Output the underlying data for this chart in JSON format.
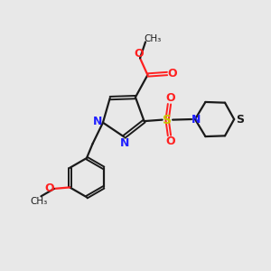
{
  "bg_color": "#e8e8e8",
  "bond_color": "#1a1a1a",
  "nitrogen_color": "#2020ff",
  "oxygen_color": "#ff2020",
  "sulfur_color": "#c8c800",
  "sulfur_ring_color": "#1a1a1a",
  "figsize": [
    3.0,
    3.0
  ],
  "dpi": 100,
  "xlim": [
    0,
    10
  ],
  "ylim": [
    0,
    10
  ]
}
